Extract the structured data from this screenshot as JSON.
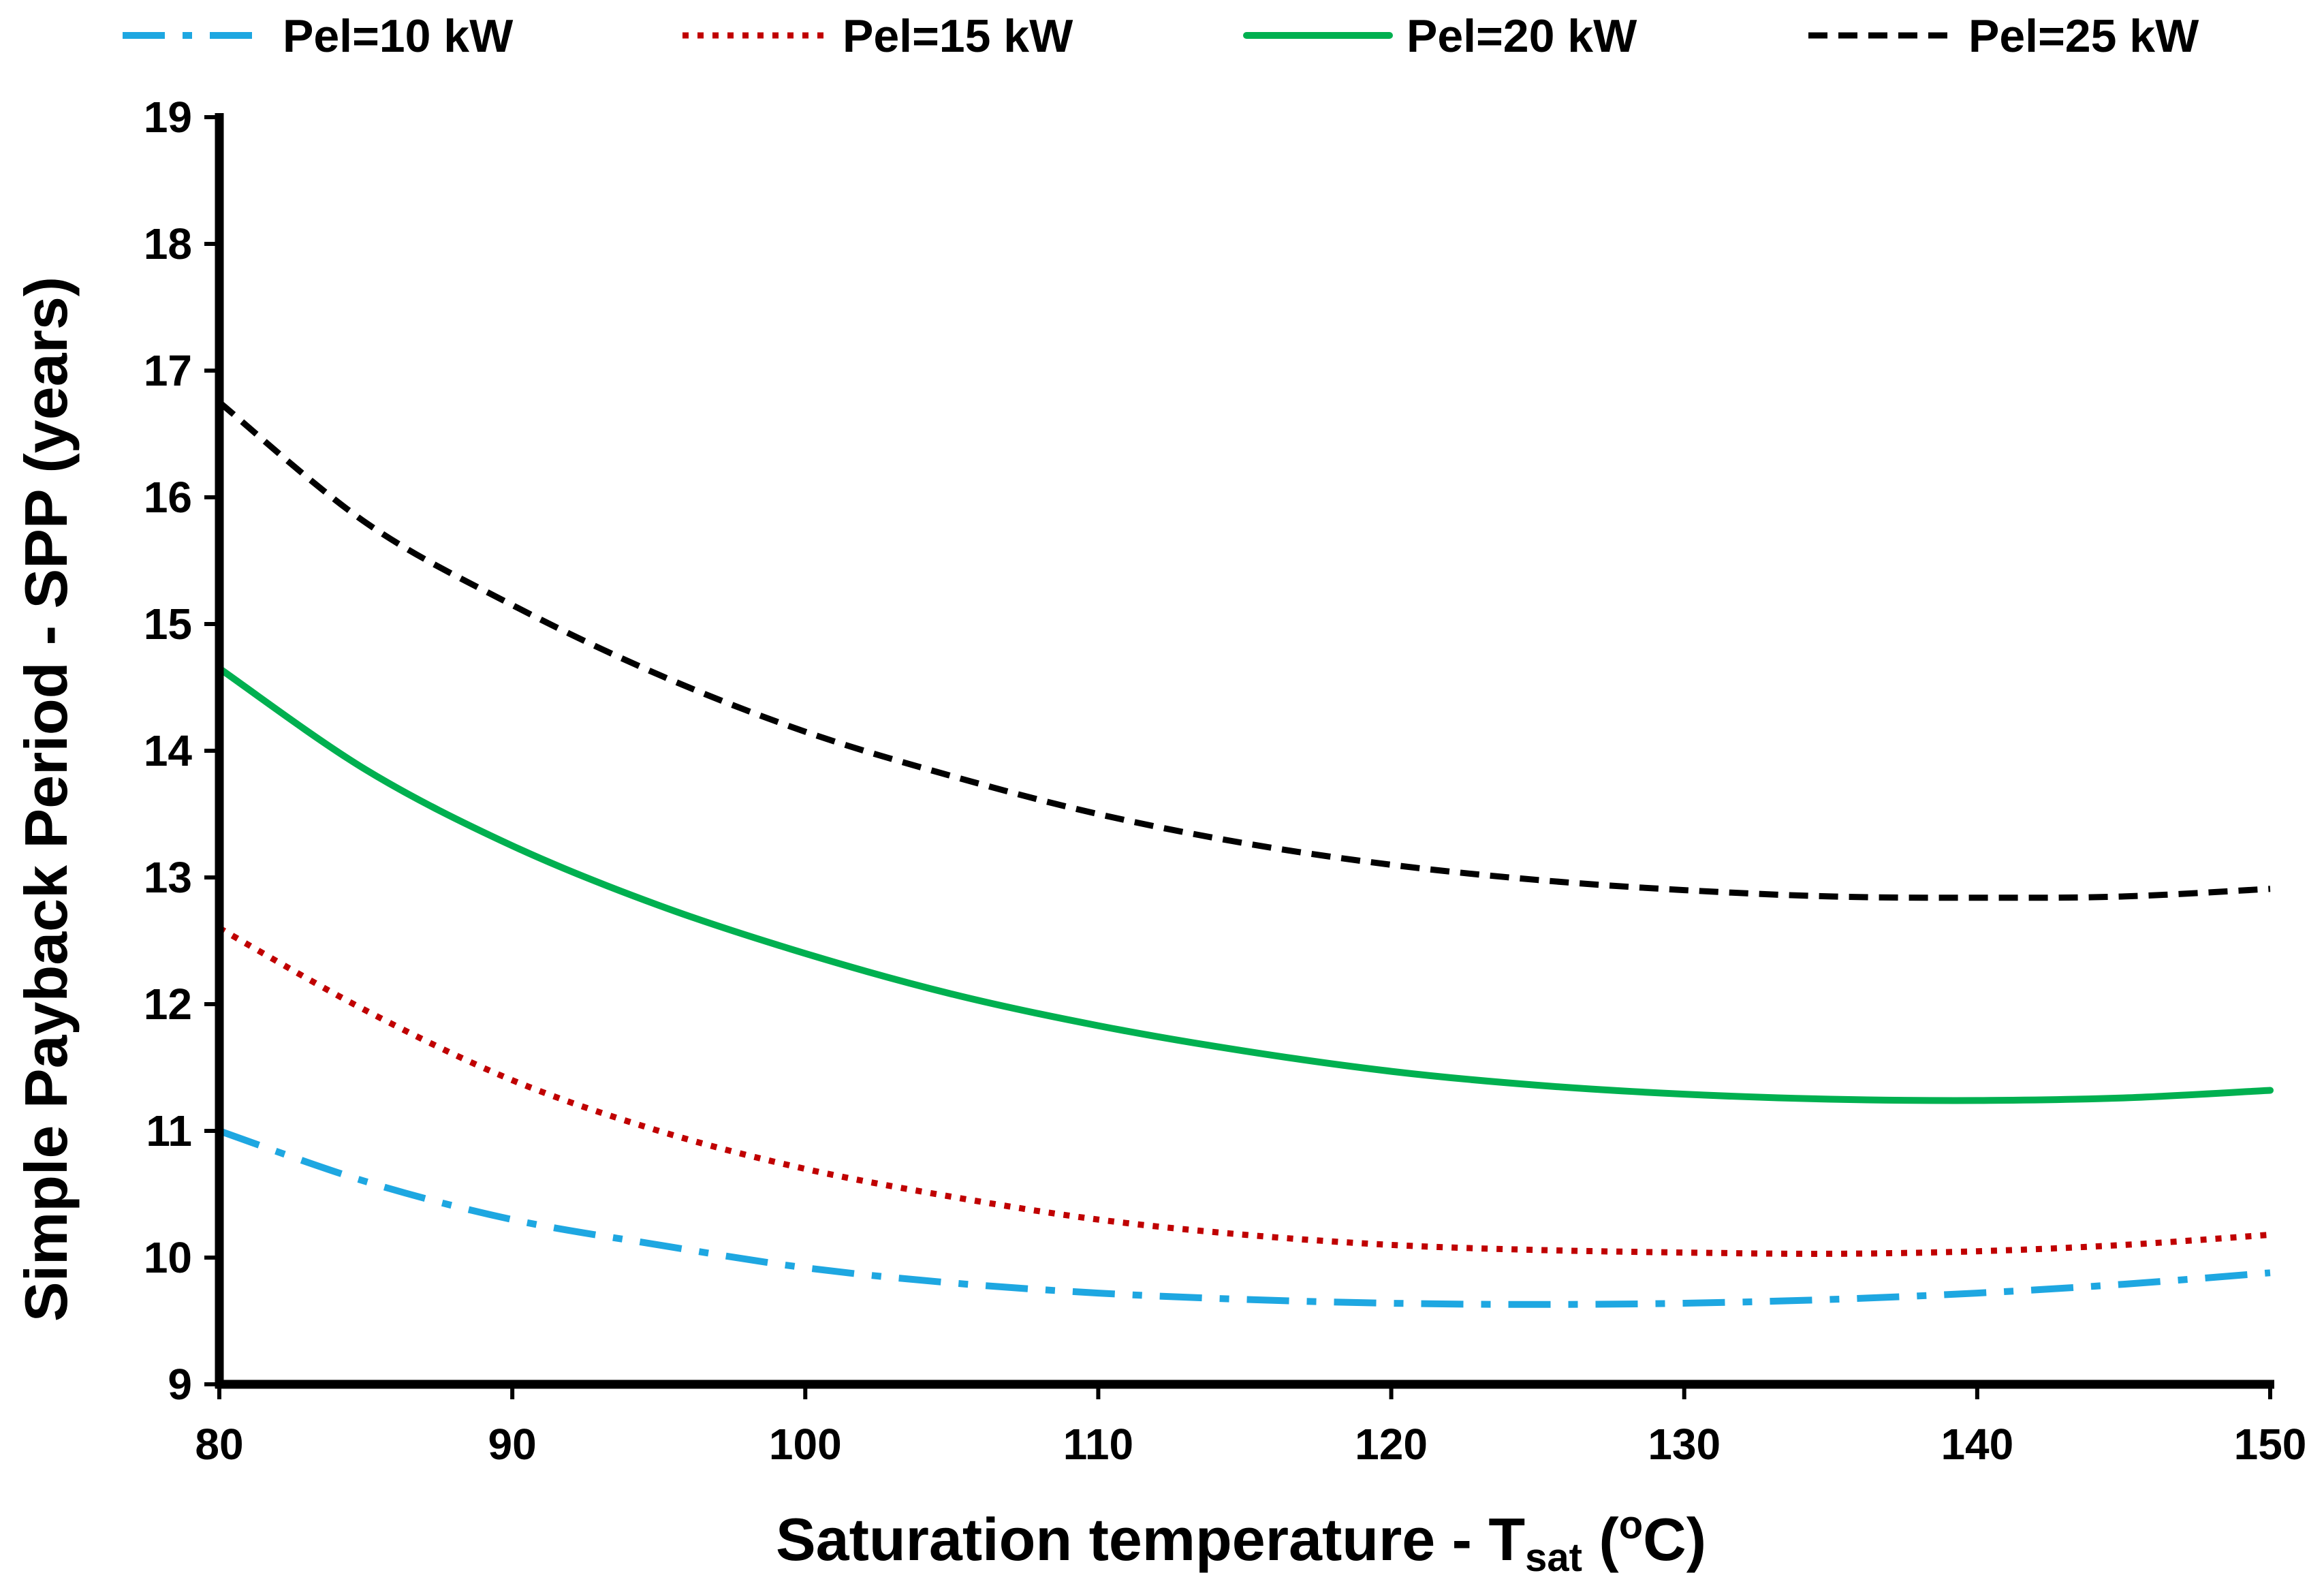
{
  "chart_data": {
    "type": "line",
    "title": "",
    "xlabel": {
      "main": "Saturation temperature - T",
      "subscript": "sat",
      "unit_open": " (",
      "unit_superscript": "o",
      "unit_close": "C)"
    },
    "ylabel": "Simple Payback Period - SPP (years)",
    "xlim": [
      80,
      150
    ],
    "ylim": [
      9,
      19
    ],
    "xticks": [
      "80",
      "90",
      "100",
      "110",
      "120",
      "130",
      "140",
      "150"
    ],
    "yticks": [
      "9",
      "10",
      "11",
      "12",
      "13",
      "14",
      "15",
      "16",
      "17",
      "18",
      "19"
    ],
    "grid": false,
    "legend_position": "top",
    "x": [
      80,
      85,
      90,
      95,
      100,
      105,
      110,
      115,
      120,
      125,
      130,
      135,
      140,
      145,
      150
    ],
    "series": [
      {
        "name": "Pel=10 kW",
        "color": "#1EA7E1",
        "style": "dash-dot",
        "values": [
          11.0,
          10.6,
          10.3,
          10.1,
          9.92,
          9.8,
          9.72,
          9.67,
          9.64,
          9.63,
          9.64,
          9.67,
          9.72,
          9.79,
          9.88
        ]
      },
      {
        "name": "Pel=15 kW",
        "color": "#C00000",
        "style": "dotted",
        "values": [
          12.6,
          11.95,
          11.4,
          11.0,
          10.7,
          10.48,
          10.3,
          10.18,
          10.1,
          10.06,
          10.04,
          10.03,
          10.05,
          10.1,
          10.18
        ]
      },
      {
        "name": "Pel=20 kW",
        "color": "#00B050",
        "style": "solid",
        "values": [
          14.65,
          13.85,
          13.25,
          12.78,
          12.4,
          12.08,
          11.83,
          11.63,
          11.47,
          11.36,
          11.29,
          11.25,
          11.24,
          11.26,
          11.32
        ]
      },
      {
        "name": "Pel=25 kW",
        "color": "#000000",
        "style": "dashed",
        "values": [
          16.75,
          15.8,
          15.15,
          14.6,
          14.15,
          13.8,
          13.5,
          13.27,
          13.1,
          12.98,
          12.9,
          12.85,
          12.84,
          12.85,
          12.91
        ]
      }
    ]
  }
}
